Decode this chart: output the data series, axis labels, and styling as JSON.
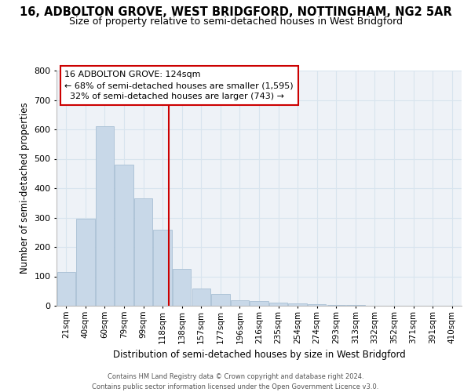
{
  "title_line1": "16, ADBOLTON GROVE, WEST BRIDGFORD, NOTTINGHAM, NG2 5AR",
  "title_line2": "Size of property relative to semi-detached houses in West Bridgford",
  "xlabel": "Distribution of semi-detached houses by size in West Bridgford",
  "ylabel": "Number of semi-detached properties",
  "categories": [
    "21sqm",
    "40sqm",
    "60sqm",
    "79sqm",
    "99sqm",
    "118sqm",
    "138sqm",
    "157sqm",
    "177sqm",
    "196sqm",
    "216sqm",
    "235sqm",
    "254sqm",
    "274sqm",
    "293sqm",
    "313sqm",
    "332sqm",
    "352sqm",
    "371sqm",
    "391sqm",
    "410sqm"
  ],
  "values": [
    115,
    295,
    610,
    480,
    365,
    260,
    125,
    60,
    40,
    20,
    15,
    10,
    8,
    5,
    3,
    2,
    1,
    1,
    1,
    0,
    0
  ],
  "bar_color": "#c8d8e8",
  "bar_edgecolor": "#a8c0d4",
  "vline_color": "#cc0000",
  "vline_x": 5.32,
  "annotation_line1": "16 ADBOLTON GROVE: 124sqm",
  "annotation_line2": "← 68% of semi-detached houses are smaller (1,595)",
  "annotation_line3": "  32% of semi-detached houses are larger (743) →",
  "ylim": [
    0,
    800
  ],
  "yticks": [
    0,
    100,
    200,
    300,
    400,
    500,
    600,
    700,
    800
  ],
  "grid_color": "#d8e4ee",
  "plot_bg": "#eef2f7",
  "footer1": "Contains HM Land Registry data © Crown copyright and database right 2024.",
  "footer2": "Contains public sector information licensed under the Open Government Licence v3.0."
}
